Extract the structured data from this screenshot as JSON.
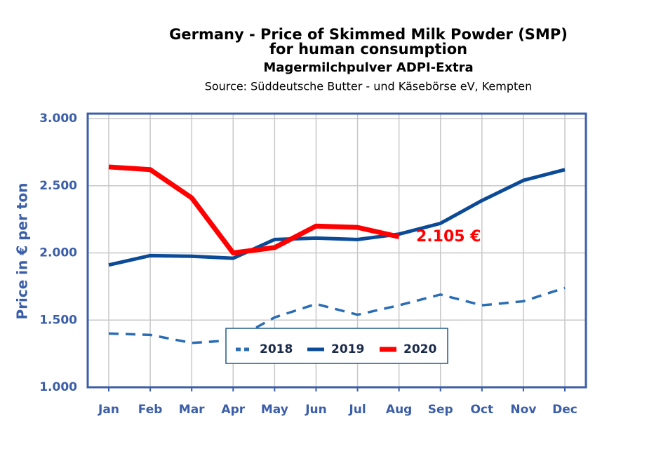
{
  "chart_data": {
    "type": "line",
    "title": "Germany - Price of Skimmed Milk Powder (SMP)",
    "title_line2": "for human consumption",
    "subtitle": "Magermilchpulver ADPI-Extra",
    "source": "Source: Süddeutsche Butter - und Käsebörse eV, Kempten",
    "y_label": "Price in € per ton",
    "annotation": "2.105 €",
    "categories": [
      "Jan",
      "Feb",
      "Mar",
      "Apr",
      "May",
      "Jun",
      "Jul",
      "Aug",
      "Sep",
      "Oct",
      "Nov",
      "Dec"
    ],
    "series": [
      {
        "name": "2018",
        "color": "#2a6db5",
        "dashed": true,
        "values": [
          1400,
          1390,
          1330,
          1350,
          1520,
          1620,
          1540,
          1610,
          1690,
          1610,
          1640,
          1740
        ]
      },
      {
        "name": "2019",
        "color": "#0b4a96",
        "dashed": false,
        "values": [
          1910,
          1980,
          1975,
          1960,
          2100,
          2110,
          2100,
          2140,
          2220,
          2390,
          2540,
          2620
        ]
      },
      {
        "name": "2020",
        "color": "#ff0000",
        "dashed": false,
        "values": [
          2640,
          2620,
          2410,
          2000,
          2040,
          2200,
          2190,
          2120,
          null,
          null,
          null,
          null
        ]
      }
    ],
    "ylim": [
      1000,
      3000
    ],
    "yticks": [
      {
        "value": 1000,
        "label": "1.000"
      },
      {
        "value": 1500,
        "label": "1.500"
      },
      {
        "value": 2000,
        "label": "2.000"
      },
      {
        "value": 2500,
        "label": "2.500"
      },
      {
        "value": 3000,
        "label": "3.000"
      }
    ],
    "grid": true
  }
}
